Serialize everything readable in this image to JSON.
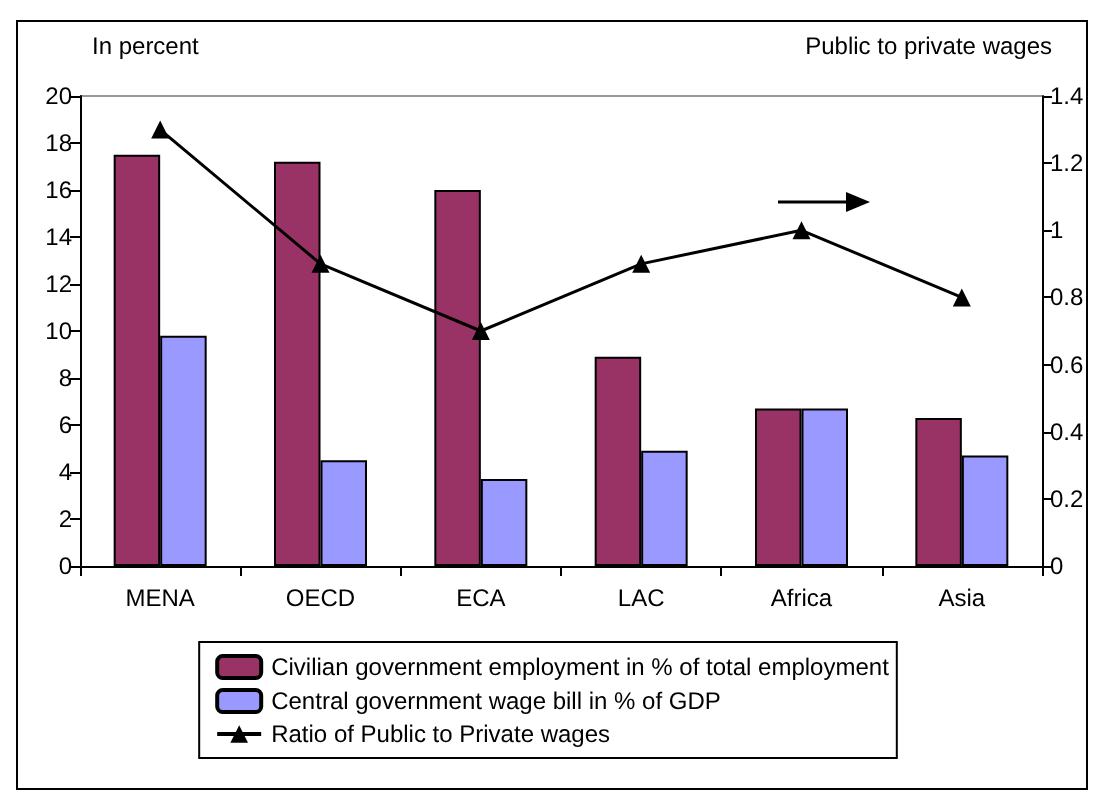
{
  "chart_data": {
    "type": "bar",
    "ylabel": "In percent",
    "y2label": "Public to private wages",
    "categories": [
      "MENA",
      "OECD",
      "ECA",
      "LAC",
      "Africa",
      "Asia"
    ],
    "series": [
      {
        "name": "Civilian government employment in % of total employment",
        "color": "#993366",
        "values": [
          17.5,
          17.2,
          16.0,
          8.9,
          6.7,
          6.3
        ]
      },
      {
        "name": "Central government wage bill in % of GDP",
        "color": "#9999ff",
        "values": [
          9.8,
          4.5,
          3.7,
          4.9,
          6.7,
          4.7
        ]
      },
      {
        "name": "Ratio of Public to Private wages",
        "type": "line",
        "axis": "y2",
        "color": "#000000",
        "marker": "triangle",
        "values": [
          1.3,
          0.9,
          0.7,
          0.9,
          1.0,
          0.8
        ]
      }
    ],
    "ylim": [
      0,
      20
    ],
    "yticks": [
      0,
      2,
      4,
      6,
      8,
      10,
      12,
      14,
      16,
      18,
      20
    ],
    "y2lim": [
      0,
      1.4
    ],
    "y2ticks": [
      0,
      0.2,
      0.4,
      0.6,
      0.8,
      1,
      1.2,
      1.4
    ],
    "grid": false,
    "legend": "bottom"
  }
}
